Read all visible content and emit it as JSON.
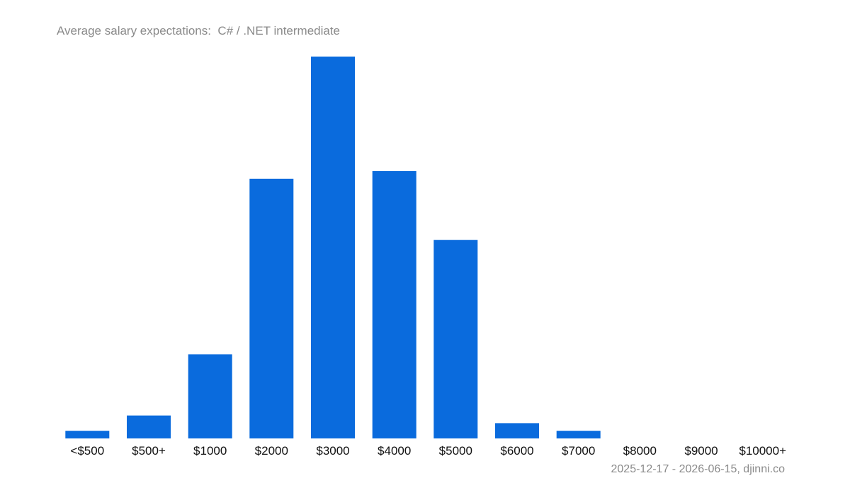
{
  "chart_data": {
    "type": "bar",
    "title": "Average salary expectations:  C# / .NET intermediate",
    "categories": [
      "<$500",
      "$500+",
      "$1000",
      "$2000",
      "$3000",
      "$4000",
      "$5000",
      "$6000",
      "$7000",
      "$8000",
      "$9000",
      "$10000+"
    ],
    "values": [
      2.0,
      6.0,
      22.0,
      68.0,
      100.0,
      70.0,
      52.0,
      4.0,
      2.0,
      0,
      0,
      0
    ],
    "xlabel": "",
    "ylabel": "",
    "grid": false,
    "bar_color": "#0a6bdd"
  },
  "footer": {
    "source": "2025-12-17 - 2026-06-15, djinni.co"
  }
}
